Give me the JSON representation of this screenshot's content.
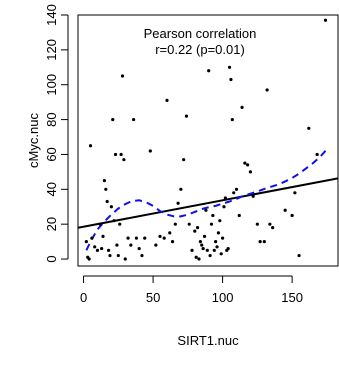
{
  "chart_data": {
    "type": "scatter",
    "xlabel": "SIRT1.nuc",
    "ylabel": "cMyc.nuc",
    "xlim": [
      -4,
      183
    ],
    "ylim": [
      -4,
      140
    ],
    "x_ticks": [
      0,
      50,
      100,
      150
    ],
    "y_ticks": [
      0,
      20,
      40,
      60,
      80,
      100,
      120,
      140
    ],
    "grid": false,
    "annotation": {
      "line1": "Pearson correlation",
      "line2": "r=0.22 (p=0.01)"
    },
    "points": [
      [
        2,
        10
      ],
      [
        3,
        1
      ],
      [
        4,
        0
      ],
      [
        5,
        65
      ],
      [
        6,
        12
      ],
      [
        8,
        7
      ],
      [
        10,
        5
      ],
      [
        12,
        20
      ],
      [
        13,
        6
      ],
      [
        14,
        13
      ],
      [
        15,
        45
      ],
      [
        16,
        40
      ],
      [
        17,
        33
      ],
      [
        18,
        5
      ],
      [
        19,
        2
      ],
      [
        20,
        30
      ],
      [
        21,
        80
      ],
      [
        22,
        22
      ],
      [
        23,
        60
      ],
      [
        24,
        8
      ],
      [
        25,
        2
      ],
      [
        26,
        20
      ],
      [
        27,
        60
      ],
      [
        28,
        105
      ],
      [
        29,
        57
      ],
      [
        30,
        0
      ],
      [
        32,
        12
      ],
      [
        34,
        8
      ],
      [
        36,
        80
      ],
      [
        38,
        12
      ],
      [
        40,
        6
      ],
      [
        42,
        2
      ],
      [
        44,
        12
      ],
      [
        48,
        62
      ],
      [
        52,
        8
      ],
      [
        55,
        13
      ],
      [
        58,
        12
      ],
      [
        60,
        91
      ],
      [
        62,
        15
      ],
      [
        64,
        10
      ],
      [
        66,
        20
      ],
      [
        68,
        32
      ],
      [
        70,
        40
      ],
      [
        72,
        57
      ],
      [
        74,
        82
      ],
      [
        76,
        20
      ],
      [
        78,
        5
      ],
      [
        80,
        16
      ],
      [
        81,
        1
      ],
      [
        82,
        18
      ],
      [
        83,
        0
      ],
      [
        84,
        10
      ],
      [
        85,
        8
      ],
      [
        86,
        6
      ],
      [
        87,
        13
      ],
      [
        88,
        28
      ],
      [
        89,
        5
      ],
      [
        90,
        108
      ],
      [
        91,
        2
      ],
      [
        92,
        20
      ],
      [
        93,
        25
      ],
      [
        94,
        5
      ],
      [
        95,
        10
      ],
      [
        96,
        7
      ],
      [
        97,
        15
      ],
      [
        98,
        22
      ],
      [
        99,
        3
      ],
      [
        100,
        12
      ],
      [
        101,
        30
      ],
      [
        102,
        35
      ],
      [
        103,
        5
      ],
      [
        104,
        6
      ],
      [
        105,
        110
      ],
      [
        106,
        103
      ],
      [
        107,
        80
      ],
      [
        108,
        38
      ],
      [
        110,
        40
      ],
      [
        112,
        25
      ],
      [
        114,
        87
      ],
      [
        116,
        55
      ],
      [
        118,
        54
      ],
      [
        120,
        50
      ],
      [
        122,
        36
      ],
      [
        125,
        20
      ],
      [
        127,
        10
      ],
      [
        130,
        10
      ],
      [
        132,
        97
      ],
      [
        134,
        20
      ],
      [
        136,
        18
      ],
      [
        145,
        28
      ],
      [
        150,
        25
      ],
      [
        152,
        38
      ],
      [
        155,
        2
      ],
      [
        162,
        75
      ],
      [
        168,
        60
      ],
      [
        174,
        137
      ]
    ],
    "series": [
      {
        "type": "line",
        "style": "solid",
        "color": "#000000",
        "x": [
          -4,
          183
        ],
        "y": [
          17.9,
          46.3
        ]
      },
      {
        "type": "line",
        "style": "dashed",
        "color": "#1010ee",
        "x": [
          2,
          5,
          10,
          15,
          20,
          25,
          30,
          35,
          40,
          45,
          50,
          55,
          60,
          65,
          70,
          75,
          80,
          85,
          90,
          95,
          100,
          105,
          110,
          115,
          120,
          125,
          130,
          135,
          140,
          145,
          150,
          155,
          160,
          165,
          170,
          175
        ],
        "y": [
          5,
          10,
          17,
          21.5,
          25.5,
          29,
          31.5,
          33.3,
          33.7,
          32.5,
          30.5,
          27.5,
          25.5,
          24.5,
          24.5,
          25.5,
          27,
          28.7,
          29.7,
          30.5,
          31.8,
          33,
          34.5,
          36.3,
          37.5,
          38.7,
          40.2,
          41.5,
          42.7,
          44.5,
          46.5,
          49,
          52,
          55,
          58.5,
          63
        ]
      }
    ]
  }
}
